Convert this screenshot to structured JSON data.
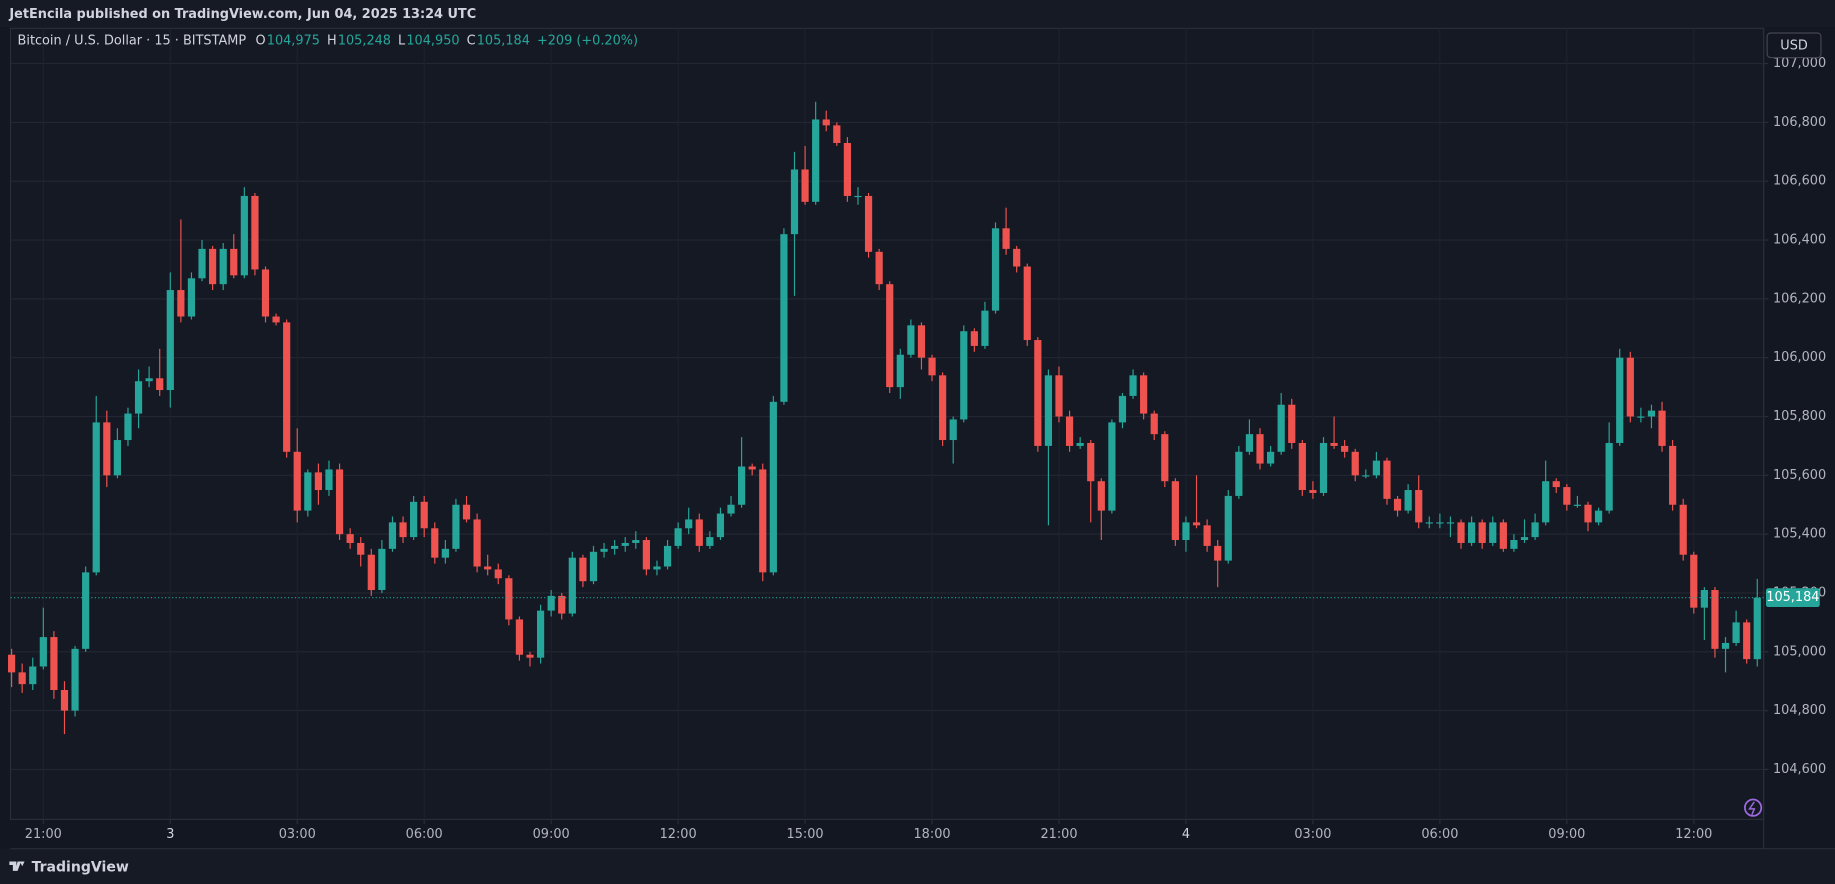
{
  "chart_data": {
    "type": "candlestick",
    "published": "JetEncila published on TradingView.com, Jun 04, 2025 13:24 UTC",
    "symbol": "Bitcoin / U.S. Dollar · 15 · BITSTAMP",
    "legend": [
      {
        "label": "O",
        "value": "104,975"
      },
      {
        "label": "H",
        "value": "105,248"
      },
      {
        "label": "L",
        "value": "104,950"
      },
      {
        "label": "C",
        "value": "105,184"
      }
    ],
    "change": "+209 (+0.20%)",
    "currency": "USD",
    "brand": "TradingView",
    "up_color": "#26a69a",
    "down_color": "#ef5350",
    "grid": true,
    "last_price": {
      "value": 105184,
      "label": "105,184"
    },
    "ylim": [
      104430,
      107120
    ],
    "yticks": [
      {
        "value": 104600,
        "label": "104,600"
      },
      {
        "value": 104800,
        "label": "104,800"
      },
      {
        "value": 105000,
        "label": "105,000"
      },
      {
        "value": 105200,
        "label": "105,200"
      },
      {
        "value": 105400,
        "label": "105,400"
      },
      {
        "value": 105600,
        "label": "105,600"
      },
      {
        "value": 105800,
        "label": "105,800"
      },
      {
        "value": 106000,
        "label": "106,000"
      },
      {
        "value": 106200,
        "label": "106,200"
      },
      {
        "value": 106400,
        "label": "106,400"
      },
      {
        "value": 106600,
        "label": "106,600"
      },
      {
        "value": 106800,
        "label": "106,800"
      },
      {
        "value": 107000,
        "label": "107,000"
      }
    ],
    "xlim": [
      -0.1,
      165.6
    ],
    "xticks": [
      {
        "value": 3,
        "label": "21:00"
      },
      {
        "value": 15,
        "label": "3"
      },
      {
        "value": 27,
        "label": "03:00"
      },
      {
        "value": 39,
        "label": "06:00"
      },
      {
        "value": 51,
        "label": "09:00"
      },
      {
        "value": 63,
        "label": "12:00"
      },
      {
        "value": 75,
        "label": "15:00"
      },
      {
        "value": 87,
        "label": "18:00"
      },
      {
        "value": 99,
        "label": "21:00"
      },
      {
        "value": 111,
        "label": "4"
      },
      {
        "value": 123,
        "label": "03:00"
      },
      {
        "value": 135,
        "label": "06:00"
      },
      {
        "value": 147,
        "label": "09:00"
      },
      {
        "value": 159,
        "label": "12:00"
      }
    ],
    "ohlc": [
      [
        104990,
        105010,
        104880,
        104930
      ],
      [
        104930,
        104960,
        104860,
        104890
      ],
      [
        104890,
        104980,
        104870,
        104950
      ],
      [
        104950,
        105150,
        104940,
        105050
      ],
      [
        105050,
        105070,
        104840,
        104870
      ],
      [
        104870,
        104900,
        104720,
        104800
      ],
      [
        104800,
        105020,
        104780,
        105010
      ],
      [
        105010,
        105290,
        105000,
        105270
      ],
      [
        105270,
        105870,
        105260,
        105780
      ],
      [
        105780,
        105820,
        105560,
        105600
      ],
      [
        105600,
        105760,
        105590,
        105720
      ],
      [
        105720,
        105830,
        105700,
        105810
      ],
      [
        105810,
        105960,
        105760,
        105920
      ],
      [
        105920,
        105970,
        105900,
        105930
      ],
      [
        105930,
        106030,
        105870,
        105890
      ],
      [
        105890,
        106290,
        105830,
        106230
      ],
      [
        106230,
        106470,
        106120,
        106140
      ],
      [
        106140,
        106290,
        106130,
        106270
      ],
      [
        106270,
        106400,
        106260,
        106370
      ],
      [
        106370,
        106380,
        106230,
        106250
      ],
      [
        106250,
        106390,
        106230,
        106370
      ],
      [
        106370,
        106420,
        106270,
        106280
      ],
      [
        106280,
        106580,
        106270,
        106550
      ],
      [
        106550,
        106560,
        106280,
        106300
      ],
      [
        106300,
        106310,
        106120,
        106140
      ],
      [
        106140,
        106150,
        106110,
        106120
      ],
      [
        106120,
        106130,
        105660,
        105680
      ],
      [
        105680,
        105760,
        105440,
        105480
      ],
      [
        105480,
        105620,
        105460,
        105610
      ],
      [
        105610,
        105640,
        105500,
        105550
      ],
      [
        105550,
        105650,
        105530,
        105620
      ],
      [
        105620,
        105640,
        105380,
        105400
      ],
      [
        105400,
        105420,
        105350,
        105370
      ],
      [
        105370,
        105390,
        105290,
        105330
      ],
      [
        105330,
        105350,
        105190,
        105210
      ],
      [
        105210,
        105380,
        105200,
        105350
      ],
      [
        105350,
        105460,
        105340,
        105440
      ],
      [
        105440,
        105460,
        105370,
        105390
      ],
      [
        105390,
        105530,
        105380,
        105510
      ],
      [
        105510,
        105530,
        105390,
        105420
      ],
      [
        105420,
        105440,
        105300,
        105320
      ],
      [
        105320,
        105380,
        105300,
        105350
      ],
      [
        105350,
        105520,
        105340,
        105500
      ],
      [
        105500,
        105530,
        105440,
        105450
      ],
      [
        105450,
        105470,
        105270,
        105290
      ],
      [
        105290,
        105330,
        105260,
        105280
      ],
      [
        105280,
        105300,
        105230,
        105250
      ],
      [
        105250,
        105260,
        105090,
        105110
      ],
      [
        105110,
        105120,
        104970,
        104990
      ],
      [
        104990,
        105000,
        104950,
        104980
      ],
      [
        104980,
        105160,
        104960,
        105140
      ],
      [
        105140,
        105210,
        105120,
        105190
      ],
      [
        105190,
        105200,
        105110,
        105130
      ],
      [
        105130,
        105340,
        105120,
        105320
      ],
      [
        105320,
        105330,
        105220,
        105240
      ],
      [
        105240,
        105360,
        105230,
        105340
      ],
      [
        105340,
        105370,
        105320,
        105350
      ],
      [
        105350,
        105380,
        105330,
        105360
      ],
      [
        105360,
        105390,
        105340,
        105370
      ],
      [
        105370,
        105410,
        105350,
        105380
      ],
      [
        105380,
        105390,
        105260,
        105280
      ],
      [
        105280,
        105310,
        105260,
        105290
      ],
      [
        105290,
        105380,
        105280,
        105360
      ],
      [
        105360,
        105440,
        105350,
        105420
      ],
      [
        105420,
        105490,
        105400,
        105450
      ],
      [
        105450,
        105470,
        105340,
        105360
      ],
      [
        105360,
        105410,
        105350,
        105390
      ],
      [
        105390,
        105490,
        105380,
        105470
      ],
      [
        105470,
        105530,
        105460,
        105500
      ],
      [
        105500,
        105730,
        105490,
        105630
      ],
      [
        105630,
        105640,
        105600,
        105620
      ],
      [
        105620,
        105640,
        105240,
        105270
      ],
      [
        105270,
        105870,
        105260,
        105850
      ],
      [
        105850,
        106440,
        105840,
        106420
      ],
      [
        106420,
        106700,
        106210,
        106640
      ],
      [
        106640,
        106720,
        106520,
        106530
      ],
      [
        106530,
        106870,
        106520,
        106810
      ],
      [
        106810,
        106840,
        106770,
        106790
      ],
      [
        106790,
        106800,
        106720,
        106730
      ],
      [
        106730,
        106750,
        106530,
        106550
      ],
      [
        106550,
        106580,
        106520,
        106550
      ],
      [
        106550,
        106560,
        106340,
        106360
      ],
      [
        106360,
        106370,
        106230,
        106250
      ],
      [
        106250,
        106260,
        105880,
        105900
      ],
      [
        105900,
        106030,
        105860,
        106010
      ],
      [
        106010,
        106130,
        106000,
        106110
      ],
      [
        106110,
        106120,
        105960,
        106000
      ],
      [
        106000,
        106010,
        105920,
        105940
      ],
      [
        105940,
        105950,
        105700,
        105720
      ],
      [
        105720,
        105800,
        105640,
        105790
      ],
      [
        105790,
        106110,
        105780,
        106090
      ],
      [
        106090,
        106100,
        106020,
        106040
      ],
      [
        106040,
        106190,
        106030,
        106160
      ],
      [
        106160,
        106460,
        106150,
        106440
      ],
      [
        106440,
        106510,
        106350,
        106370
      ],
      [
        106370,
        106380,
        106290,
        106310
      ],
      [
        106310,
        106320,
        106040,
        106060
      ],
      [
        106060,
        106070,
        105680,
        105700
      ],
      [
        105700,
        105960,
        105430,
        105940
      ],
      [
        105940,
        105970,
        105780,
        105800
      ],
      [
        105800,
        105820,
        105680,
        105700
      ],
      [
        105700,
        105730,
        105690,
        105710
      ],
      [
        105710,
        105720,
        105440,
        105580
      ],
      [
        105580,
        105590,
        105380,
        105480
      ],
      [
        105480,
        105790,
        105470,
        105780
      ],
      [
        105780,
        105880,
        105760,
        105870
      ],
      [
        105870,
        105960,
        105860,
        105940
      ],
      [
        105940,
        105950,
        105790,
        105810
      ],
      [
        105810,
        105820,
        105720,
        105740
      ],
      [
        105740,
        105750,
        105560,
        105580
      ],
      [
        105580,
        105590,
        105360,
        105380
      ],
      [
        105380,
        105460,
        105340,
        105440
      ],
      [
        105440,
        105600,
        105420,
        105430
      ],
      [
        105430,
        105450,
        105340,
        105360
      ],
      [
        105360,
        105380,
        105220,
        105310
      ],
      [
        105310,
        105550,
        105300,
        105530
      ],
      [
        105530,
        105700,
        105520,
        105680
      ],
      [
        105680,
        105790,
        105670,
        105740
      ],
      [
        105740,
        105760,
        105620,
        105640
      ],
      [
        105640,
        105700,
        105630,
        105680
      ],
      [
        105680,
        105880,
        105670,
        105840
      ],
      [
        105840,
        105860,
        105690,
        105710
      ],
      [
        105710,
        105720,
        105530,
        105550
      ],
      [
        105550,
        105580,
        105520,
        105540
      ],
      [
        105540,
        105730,
        105530,
        105710
      ],
      [
        105710,
        105800,
        105690,
        105700
      ],
      [
        105700,
        105720,
        105660,
        105680
      ],
      [
        105680,
        105690,
        105580,
        105600
      ],
      [
        105600,
        105620,
        105590,
        105600
      ],
      [
        105600,
        105680,
        105590,
        105650
      ],
      [
        105650,
        105660,
        105500,
        105520
      ],
      [
        105520,
        105530,
        105460,
        105480
      ],
      [
        105480,
        105570,
        105470,
        105550
      ],
      [
        105550,
        105600,
        105420,
        105440
      ],
      [
        105440,
        105460,
        105420,
        105440
      ],
      [
        105440,
        105470,
        105420,
        105440
      ],
      [
        105440,
        105460,
        105390,
        105440
      ],
      [
        105440,
        105450,
        105350,
        105370
      ],
      [
        105370,
        105460,
        105360,
        105440
      ],
      [
        105440,
        105450,
        105350,
        105370
      ],
      [
        105370,
        105460,
        105360,
        105440
      ],
      [
        105440,
        105450,
        105340,
        105350
      ],
      [
        105350,
        105400,
        105340,
        105380
      ],
      [
        105380,
        105450,
        105370,
        105390
      ],
      [
        105390,
        105470,
        105380,
        105440
      ],
      [
        105440,
        105650,
        105430,
        105580
      ],
      [
        105580,
        105590,
        105540,
        105560
      ],
      [
        105560,
        105570,
        105480,
        105500
      ],
      [
        105500,
        105530,
        105490,
        105500
      ],
      [
        105500,
        105510,
        105410,
        105440
      ],
      [
        105440,
        105490,
        105430,
        105480
      ],
      [
        105480,
        105780,
        105470,
        105710
      ],
      [
        105710,
        106030,
        105700,
        106000
      ],
      [
        106000,
        106020,
        105780,
        105800
      ],
      [
        105800,
        105830,
        105780,
        105800
      ],
      [
        105800,
        105840,
        105760,
        105820
      ],
      [
        105820,
        105850,
        105680,
        105700
      ],
      [
        105700,
        105720,
        105480,
        105500
      ],
      [
        105500,
        105520,
        105310,
        105330
      ],
      [
        105330,
        105340,
        105130,
        105150
      ],
      [
        105150,
        105220,
        105040,
        105210
      ],
      [
        105210,
        105220,
        104980,
        105010
      ],
      [
        105010,
        105050,
        104930,
        105030
      ],
      [
        105030,
        105140,
        105020,
        105100
      ],
      [
        105100,
        105110,
        104960,
        104975
      ],
      [
        104975,
        105248,
        104950,
        105184
      ]
    ]
  }
}
